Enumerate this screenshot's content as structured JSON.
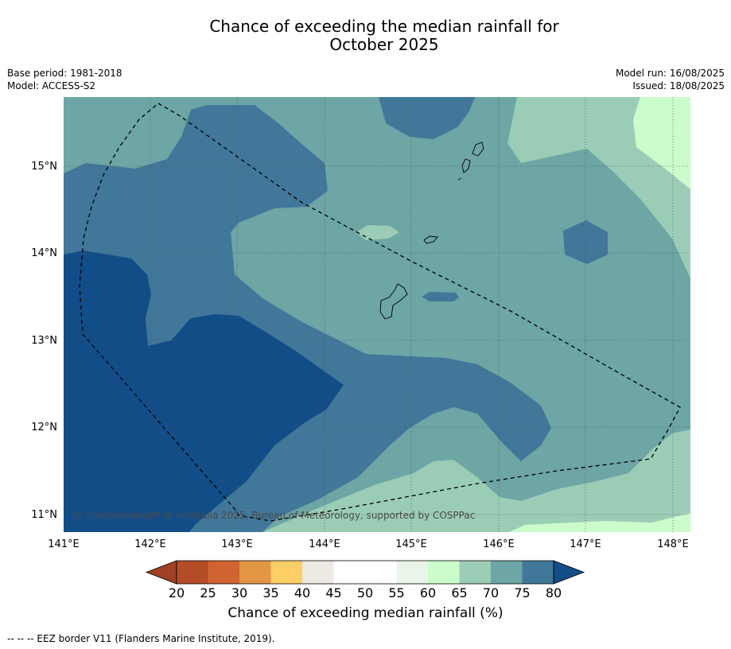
{
  "header": {
    "title_line1": "Chance of exceeding the median rainfall for",
    "title_line2": "October 2025",
    "base_period": "Base period: 1981-2018",
    "model": "Model: ACCESS-S2",
    "model_run": "Model run: 16/08/2025",
    "issued": "Issued: 18/08/2025"
  },
  "map": {
    "lon_ticks": [
      "141°E",
      "142°E",
      "143°E",
      "144°E",
      "145°E",
      "146°E",
      "147°E",
      "148°E"
    ],
    "lat_ticks": [
      "15°N",
      "14°N",
      "13°N",
      "12°N",
      "11°N"
    ],
    "copyright": "© Commonwealth of Australia 2025, Bureau of Meteorology, supported by COSPPac",
    "dominant_category_band": "70-75",
    "regions": [
      "60-65 / 65-70 in east and south-east",
      "75-80 central band",
      ">80 in south-west"
    ]
  },
  "colorbar": {
    "labels": [
      "20",
      "25",
      "30",
      "35",
      "40",
      "45",
      "50",
      "55",
      "60",
      "65",
      "70",
      "75",
      "80"
    ],
    "colors": [
      "#a04025",
      "#b54c28",
      "#cf6331",
      "#e29646",
      "#fdcd66",
      "#ede9e3",
      "#ffffff",
      "#ffffff",
      "#e8f5e8",
      "#ccfccc",
      "#9bcdb6",
      "#6ea5a5",
      "#417799",
      "#124d88"
    ],
    "title": "Chance of exceeding median rainfall (%)"
  },
  "footer": {
    "legend_text": "--  --  -- EEZ border V11 (Flanders Marine Institute, 2019)."
  }
}
